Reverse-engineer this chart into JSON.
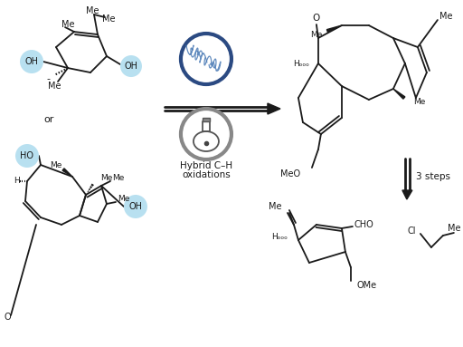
{
  "bg_color": "#ffffff",
  "line_color": "#1a1a1a",
  "light_blue": "#b8e0f0",
  "dark_blue": "#2b4a82",
  "gray": "#888888",
  "hybrid_line1": "Hybrid C–H",
  "hybrid_line2": "oxidations",
  "steps_text": "3 steps",
  "or_text": "or"
}
